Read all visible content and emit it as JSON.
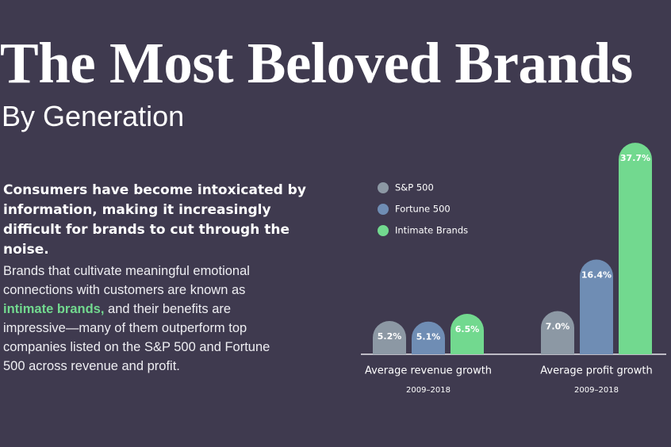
{
  "title": "The Most Beloved Brands",
  "subtitle": "By Generation",
  "intro": "Consumers have become intoxicated by information, making it increasingly difficult for brands to cut through the noise.",
  "paragraph": [
    "Brands that cultivate meaningful emotional connections with customers are known as ",
    "intimate brands,",
    " and their benefits are impressive—many of them outperform top companies listed on the S&P 500 and Fortune 500 across revenue and profit."
  ],
  "chart_data": {
    "type": "bar",
    "categories": [
      "Average revenue growth",
      "Average profit growth"
    ],
    "category_notes": [
      "2009–2018",
      "2009–2018"
    ],
    "series": [
      {
        "name": "S&P 500",
        "color": "#8c98a4",
        "values": [
          5.2,
          7.0
        ],
        "value_labels": [
          "5.2%",
          "7.0%"
        ]
      },
      {
        "name": "Fortune 500",
        "color": "#6f8db4",
        "values": [
          5.1,
          16.4
        ],
        "value_labels": [
          "5.1%",
          "16.4%"
        ]
      },
      {
        "name": "Intimate Brands",
        "color": "#72d98f",
        "values": [
          6.5,
          37.7
        ],
        "value_labels": [
          "6.5%",
          "37.7%"
        ]
      }
    ]
  }
}
